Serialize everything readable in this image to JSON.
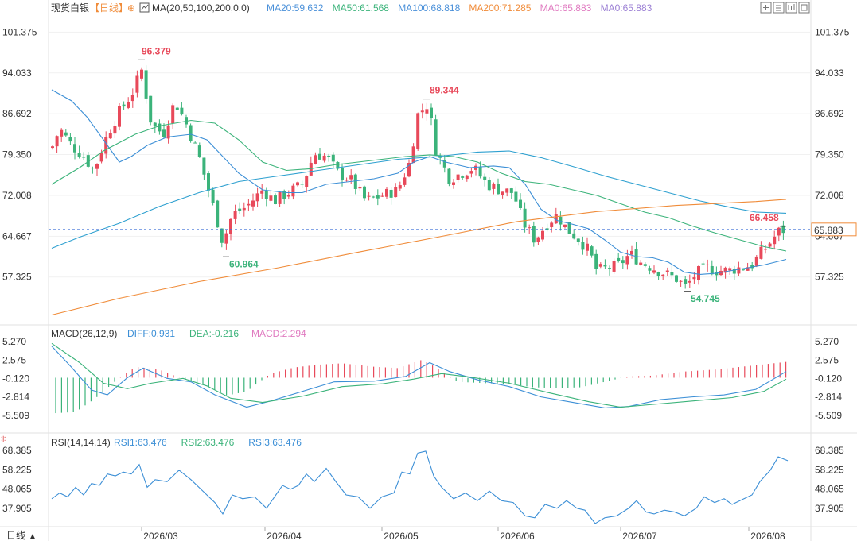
{
  "header": {
    "symbol": "现货白银",
    "period_tag": "【日线】",
    "ma_params": "MA(20,50,100,200,0,0)",
    "ma_values": [
      {
        "text": "MA20:59.632",
        "color": "#4a90d9"
      },
      {
        "text": "MA50:61.568",
        "color": "#3bb37a"
      },
      {
        "text": "MA100:68.818",
        "color": "#4a90d9"
      },
      {
        "text": "MA200:71.285",
        "color": "#f08c3a"
      },
      {
        "text": "MA0:65.883",
        "color": "#e07ac0"
      },
      {
        "text": "MA0:65.883",
        "color": "#9b7fd4"
      }
    ]
  },
  "toolbar": {
    "icons": [
      "expand-icon",
      "grid-icon",
      "chart-style-icon",
      "settings-icon"
    ]
  },
  "colors": {
    "up": "#e8495a",
    "down": "#3bb37a",
    "ma20": "#3c8fd6",
    "ma50": "#3bb37a",
    "ma100": "#2ea0d0",
    "ma200": "#f08c3a"
  },
  "chart_data": [
    {
      "type": "candlestick",
      "title": "现货白银 【日线】",
      "yticks": [
        "101.375",
        "94.033",
        "86.692",
        "79.350",
        "72.008",
        "64.667",
        "57.325"
      ],
      "ylim": [
        50.0,
        104.0
      ],
      "xticks": [
        "2026/03",
        "2026/04",
        "2026/05",
        "2026/06",
        "2026/07",
        "2026/08"
      ],
      "last_price": "65.883",
      "annotations": [
        {
          "text": "96.379",
          "value": 96.379,
          "kind": "high"
        },
        {
          "text": "60.964",
          "value": 60.964,
          "kind": "low"
        },
        {
          "text": "89.344",
          "value": 89.344,
          "kind": "high"
        },
        {
          "text": "54.745",
          "value": 54.745,
          "kind": "low"
        },
        {
          "text": "66.458",
          "value": 66.458,
          "kind": "high"
        }
      ],
      "series": [
        {
          "name": "MA20",
          "value": 59.632
        },
        {
          "name": "MA50",
          "value": 61.568
        },
        {
          "name": "MA100",
          "value": 68.818
        },
        {
          "name": "MA200",
          "value": 71.285
        }
      ]
    },
    {
      "type": "macd",
      "title": "MACD(26,12,9)",
      "legend": [
        {
          "text": "DIFF:0.931",
          "color": "#3c8fd6"
        },
        {
          "text": "DEA:-0.216",
          "color": "#3bb37a"
        },
        {
          "text": "MACD:2.294",
          "color": "#e07ac0"
        }
      ],
      "yticks": [
        "5.270",
        "2.575",
        "-0.120",
        "-2.814",
        "-5.509"
      ],
      "ylim": [
        -6.5,
        6.0
      ]
    },
    {
      "type": "line",
      "title": "RSI(14,14,14)",
      "legend": [
        {
          "text": "RSI1:63.476",
          "color": "#3c8fd6"
        },
        {
          "text": "RSI2:63.476",
          "color": "#3bb37a"
        },
        {
          "text": "RSI3:63.476",
          "color": "#3c8fd6"
        }
      ],
      "yticks": [
        "68.385",
        "58.225",
        "48.065",
        "37.905"
      ],
      "ylim": [
        28.0,
        71.0
      ]
    }
  ],
  "footer": {
    "period_selector": "日线"
  }
}
